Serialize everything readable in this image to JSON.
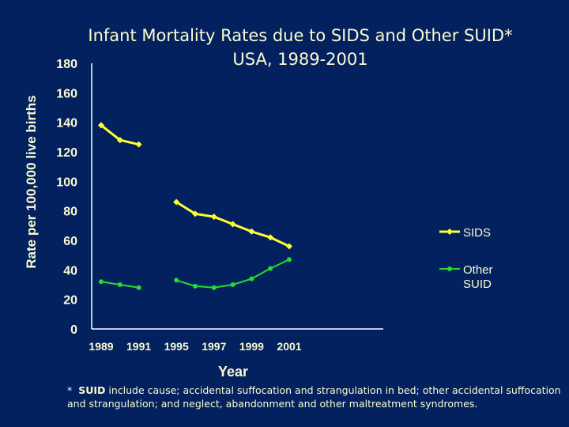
{
  "chart_data": {
    "type": "line",
    "title": "Infant Mortality Rates due to SIDS and Other SUID*\nUSA, 1989-2001",
    "title_lines": [
      "Infant Mortality Rates due to SIDS and Other SUID*",
      "USA, 1989-2001"
    ],
    "xlabel": "Year",
    "ylabel": "Rate per 100,000 live births",
    "x": [
      1989,
      1990,
      1991,
      1995,
      1996,
      1997,
      1998,
      1999,
      2000,
      2001
    ],
    "x_tick_labels": [
      "1989",
      "1991",
      "1995",
      "1997",
      "1999",
      "2001"
    ],
    "y_tick_labels": [
      "0",
      "20",
      "40",
      "60",
      "80",
      "100",
      "120",
      "140",
      "160",
      "180"
    ],
    "ylim": [
      0,
      180
    ],
    "grid": false,
    "legend": "right",
    "series": [
      {
        "name": "SIDS",
        "color": "#ffff33",
        "marker": "diamond",
        "values": [
          138,
          128,
          125,
          86,
          78,
          76,
          71,
          66,
          62,
          56
        ]
      },
      {
        "name": "Other SUID",
        "color": "#22dd33",
        "marker": "circle",
        "values": [
          32,
          30,
          28,
          33,
          29,
          28,
          30,
          34,
          41,
          47
        ]
      }
    ]
  },
  "footnote": {
    "star": "*",
    "term": "SUID",
    "text": "include cause; accidental suffocation and strangulation in bed; other accidental suffocation and strangulation;  and  neglect, abandonment and other maltreatment syndromes."
  }
}
